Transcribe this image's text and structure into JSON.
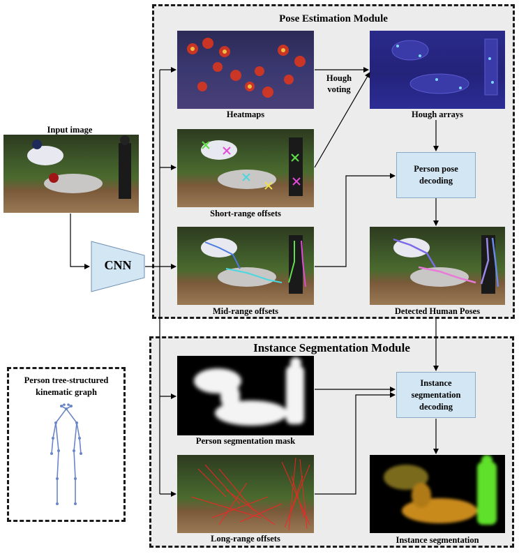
{
  "modules": {
    "pose_title": "Pose Estimation Module",
    "seg_title": "Instance Segmentation Module"
  },
  "input": {
    "caption": "Input image"
  },
  "cnn": {
    "label": "CNN"
  },
  "pose": {
    "heatmaps": "Heatmaps",
    "hough_voting": "Hough\nvoting",
    "hough_arrays": "Hough arrays",
    "short_range": "Short-range offsets",
    "mid_range": "Mid-range offsets",
    "decoding": "Person pose\ndecoding",
    "detected": "Detected Human Poses"
  },
  "seg": {
    "mask": "Person segmentation mask",
    "long_range": "Long-range offsets",
    "decoding": "Instance\nsegmentation\ndecoding",
    "result": "Instance segmentation"
  },
  "kinematic": {
    "title": "Person tree-structured\nkinematic graph"
  },
  "colors": {
    "module_fill": "#ececec",
    "box_fill": "#d2e6f4",
    "graph_line": "#6a86c8"
  }
}
